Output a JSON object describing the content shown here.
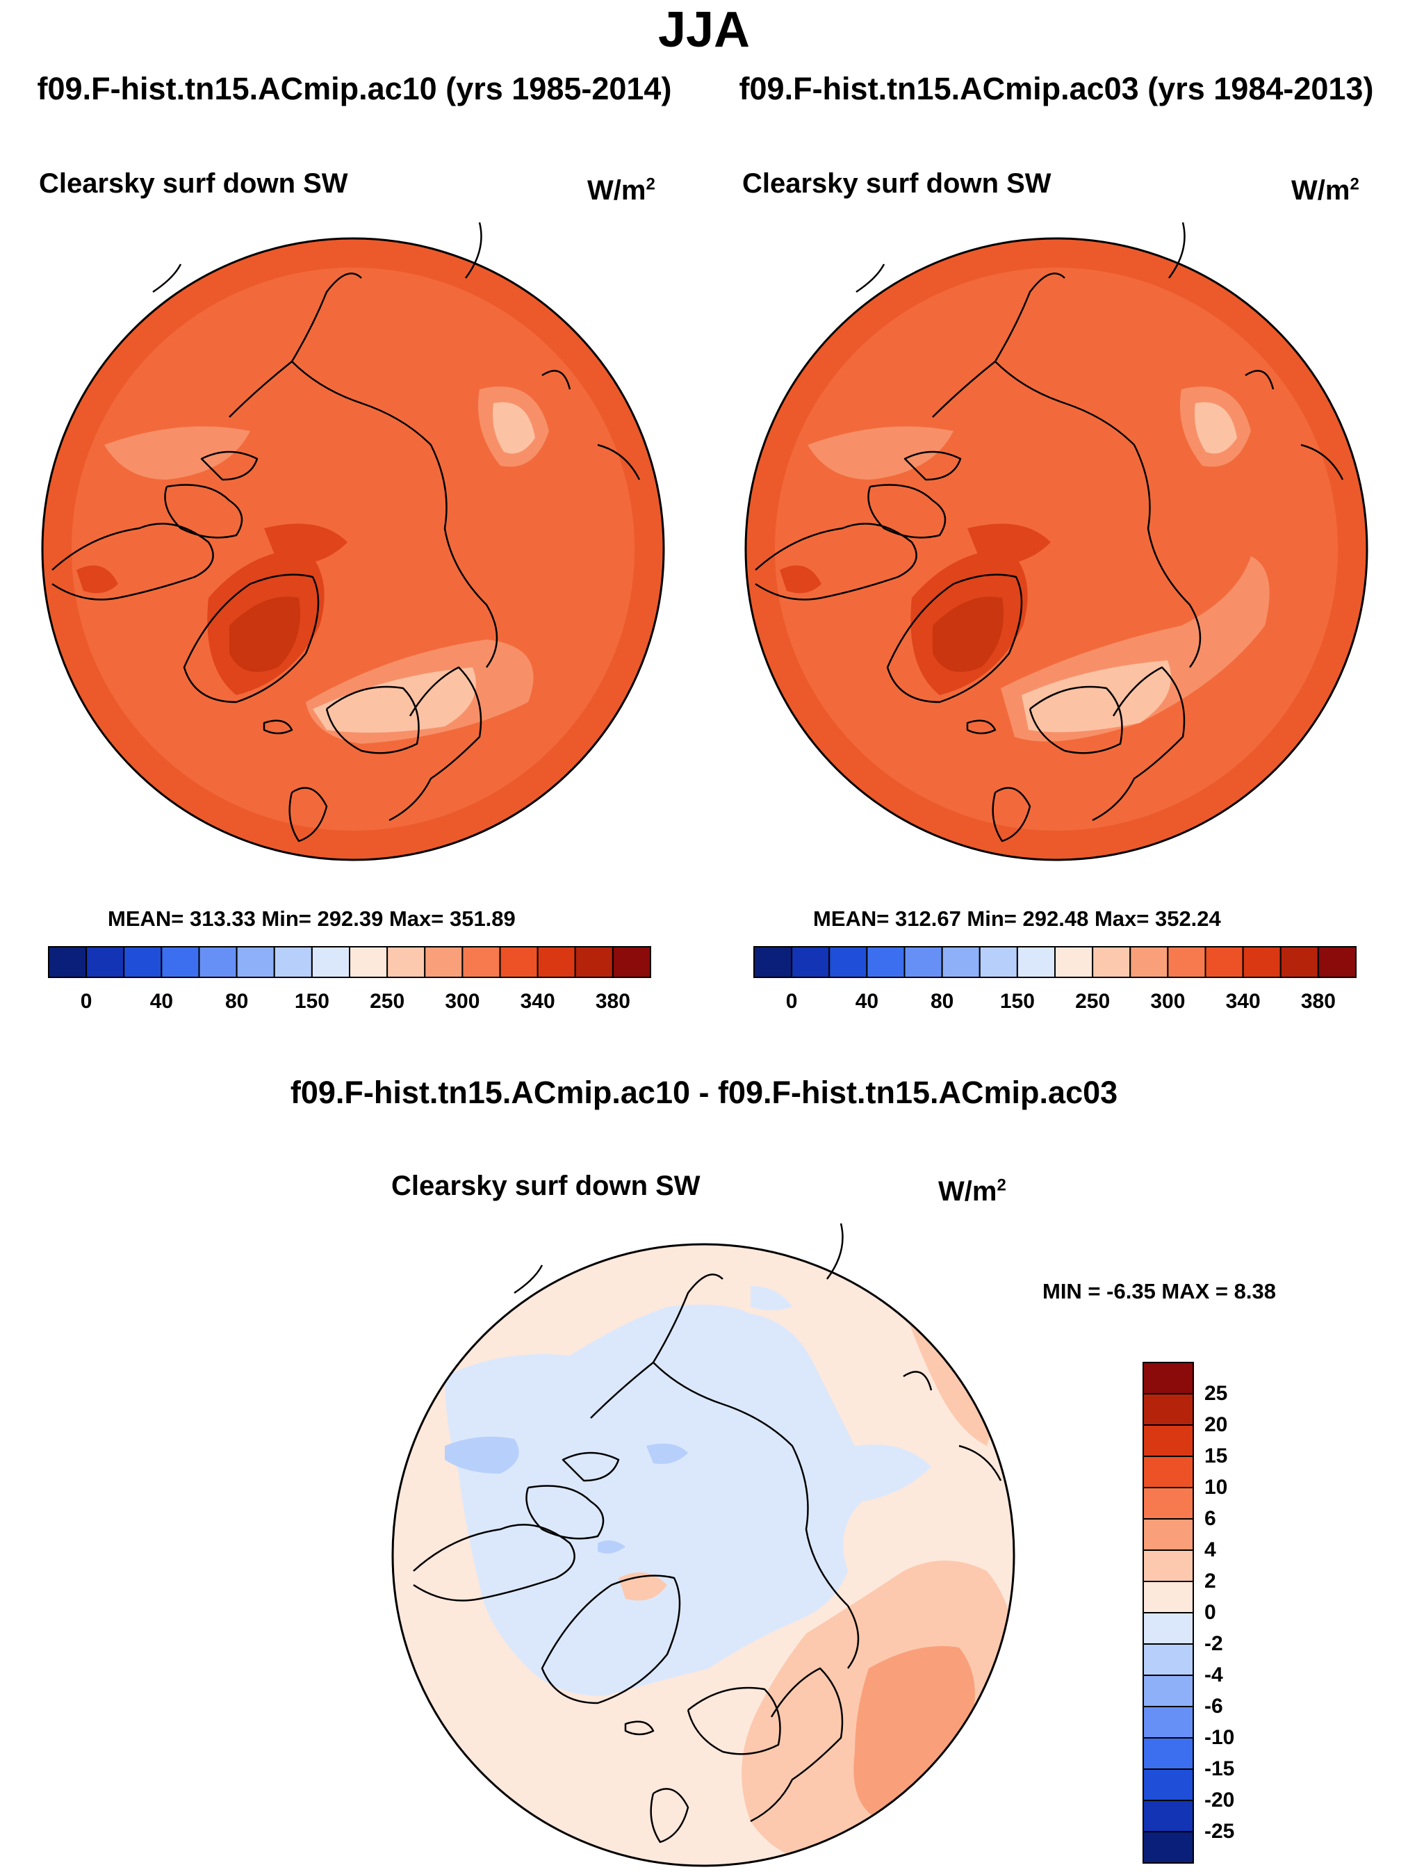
{
  "title": "JJA",
  "run_left": "f09.F-hist.tn15.ACmip.ac10 (yrs 1985-2014)",
  "run_right": "f09.F-hist.tn15.ACmip.ac03 (yrs 1984-2013)",
  "panel_left": {
    "variable": "Clearsky surf down SW",
    "units": "W/m",
    "units_exp": "2",
    "stats": "MEAN= 313.33  Min= 292.39  Max= 351.89"
  },
  "panel_right": {
    "variable": "Clearsky surf down SW",
    "units": "W/m",
    "units_exp": "2",
    "stats": "MEAN= 312.67  Min= 292.48  Max= 352.24"
  },
  "colorbar_top": {
    "colors": [
      "#0a1f7a",
      "#1234b5",
      "#1f4fd8",
      "#3b6fef",
      "#6690f5",
      "#8eb0f9",
      "#b7cffb",
      "#dbe8fc",
      "#fde8dc",
      "#fcc9ae",
      "#f9a07a",
      "#f67a4e",
      "#ec5226",
      "#d93813",
      "#b5230b",
      "#8b0a0a"
    ],
    "labels": [
      "0",
      "40",
      "80",
      "150",
      "250",
      "300",
      "340",
      "380"
    ]
  },
  "diff": {
    "title": "f09.F-hist.tn15.ACmip.ac10 - f09.F-hist.tn15.ACmip.ac03",
    "variable": "Clearsky surf down SW",
    "units": "W/m",
    "units_exp": "2",
    "minmax": "MIN =  -6.35 MAX =   8.38"
  },
  "colorbar_diff": {
    "colors": [
      "#8b0a0a",
      "#b5230b",
      "#d93813",
      "#ec5226",
      "#f67a4e",
      "#f9a07a",
      "#fcc9ae",
      "#fde8dc",
      "#dbe8fc",
      "#b7cffb",
      "#8eb0f9",
      "#6690f5",
      "#3b6fef",
      "#1f4fd8",
      "#1234b5",
      "#0a1f7a"
    ],
    "labels": [
      "25",
      "20",
      "15",
      "10",
      "6",
      "4",
      "2",
      "0",
      "-2",
      "-4",
      "-6",
      "-10",
      "-15",
      "-20",
      "-25"
    ]
  },
  "map_colors": {
    "top_base": "#f26a3b",
    "top_ring": "#ec5a2b",
    "top_light": "#f79068",
    "top_lighter": "#fcc2a4",
    "top_dark": "#e0441b",
    "top_darker": "#c9360f",
    "diff_base": "#fde8dc",
    "diff_neg": "#dbe8fc",
    "diff_neg2": "#b7cffb",
    "diff_pos": "#fcc9ae",
    "diff_pos2": "#f9a07a"
  }
}
